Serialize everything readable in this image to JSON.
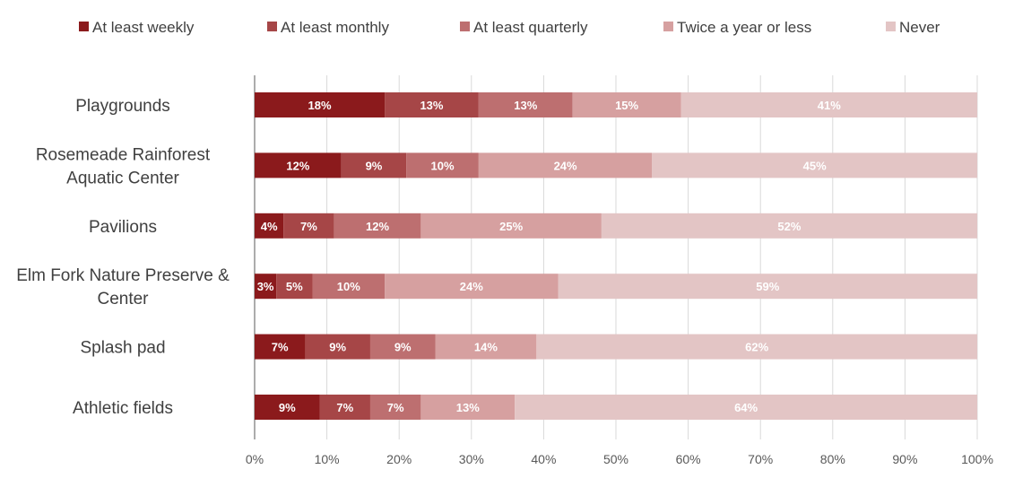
{
  "chart_data": {
    "type": "bar",
    "orientation": "horizontal",
    "stacked": true,
    "title": "",
    "xlabel": "",
    "ylabel": "",
    "xlim": [
      0,
      100
    ],
    "x_ticks": [
      "0%",
      "10%",
      "20%",
      "30%",
      "40%",
      "50%",
      "60%",
      "70%",
      "80%",
      "90%",
      "100%"
    ],
    "legend_position": "top",
    "grid": "vertical",
    "categories": [
      [
        "Playgrounds"
      ],
      [
        "Rosemeade Rainforest",
        "Aquatic Center"
      ],
      [
        "Pavilions"
      ],
      [
        "Elm Fork Nature Preserve &",
        "Center"
      ],
      [
        "Splash pad"
      ],
      [
        "Athletic fields"
      ]
    ],
    "series": [
      {
        "name": "At least weekly",
        "color": "#8b1a1c",
        "values": [
          18,
          12,
          4,
          3,
          7,
          9
        ],
        "labels": [
          "18%",
          "12%",
          "4%",
          "3%",
          "7%",
          "9%"
        ]
      },
      {
        "name": "At least monthly",
        "color": "#a64647",
        "values": [
          13,
          9,
          7,
          5,
          9,
          7
        ],
        "labels": [
          "13%",
          "9%",
          "7%",
          "5%",
          "9%",
          "7%"
        ]
      },
      {
        "name": "At least quarterly",
        "color": "#bd6f70",
        "values": [
          13,
          10,
          12,
          10,
          9,
          7
        ],
        "labels": [
          "13%",
          "10%",
          "12%",
          "10%",
          "9%",
          "7%"
        ]
      },
      {
        "name": "Twice a year or less",
        "color": "#d6a0a0",
        "values": [
          15,
          24,
          25,
          24,
          14,
          13
        ],
        "labels": [
          "15%",
          "24%",
          "25%",
          "24%",
          "14%",
          "13%"
        ]
      },
      {
        "name": "Never",
        "color": "#e3c5c5",
        "values": [
          41,
          45,
          52,
          59,
          62,
          64
        ],
        "labels": [
          "41%",
          "45%",
          "52%",
          "59%",
          "62%",
          "64%"
        ]
      }
    ]
  }
}
